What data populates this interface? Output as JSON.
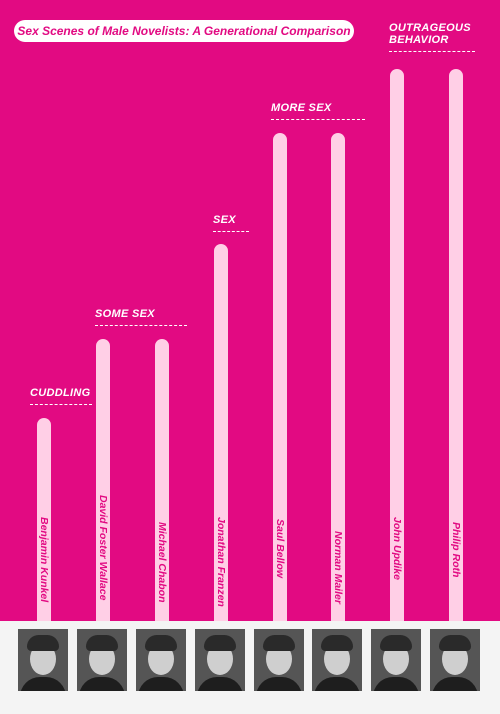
{
  "chart_data": {
    "type": "bar",
    "title": "Sex Scenes of Male Novelists: A Generational Comparison",
    "levels": [
      "CUDDLING",
      "SOME SEX",
      "SEX",
      "MORE SEX",
      "OUTRAGEOUS BEHAVIOR"
    ],
    "categories": [
      "Benjamin Kunkel",
      "David Foster Wallace",
      "Michael Chabon",
      "Jonathan Franzen",
      "Saul Bellow",
      "Norman Mailer",
      "John Updike",
      "Philip Roth"
    ],
    "values": [
      1,
      2,
      2,
      3,
      4,
      4,
      5,
      5
    ],
    "ylim": [
      0,
      5
    ],
    "grid": false,
    "legend": "none"
  },
  "colors": {
    "background": "#e20a82",
    "bar": "#ffcfe6",
    "title_pill": "#ffffff",
    "name_text": "#e20a82",
    "tier_text": "#ffffff"
  },
  "photos": [
    {
      "alt": "Benjamin Kunkel"
    },
    {
      "alt": "David Foster Wallace"
    },
    {
      "alt": "Michael Chabon"
    },
    {
      "alt": "Jonathan Franzen"
    },
    {
      "alt": "Saul Bellow"
    },
    {
      "alt": "Norman Mailer"
    },
    {
      "alt": "John Updike"
    },
    {
      "alt": "Philip Roth"
    }
  ]
}
